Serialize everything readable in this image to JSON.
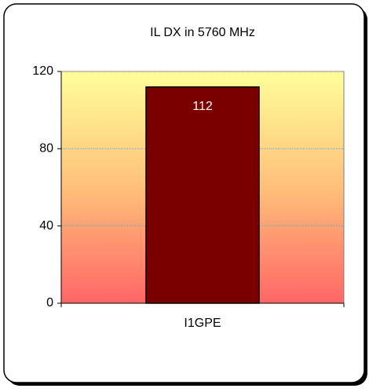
{
  "chart_data": {
    "type": "bar",
    "title": "IL DX in 5760 MHz",
    "categories": [
      "I1GPE"
    ],
    "values": [
      112
    ],
    "color": "#7a0000",
    "ylim": [
      0,
      120
    ],
    "yticks": [
      0,
      40,
      80,
      120
    ],
    "grid": true
  }
}
